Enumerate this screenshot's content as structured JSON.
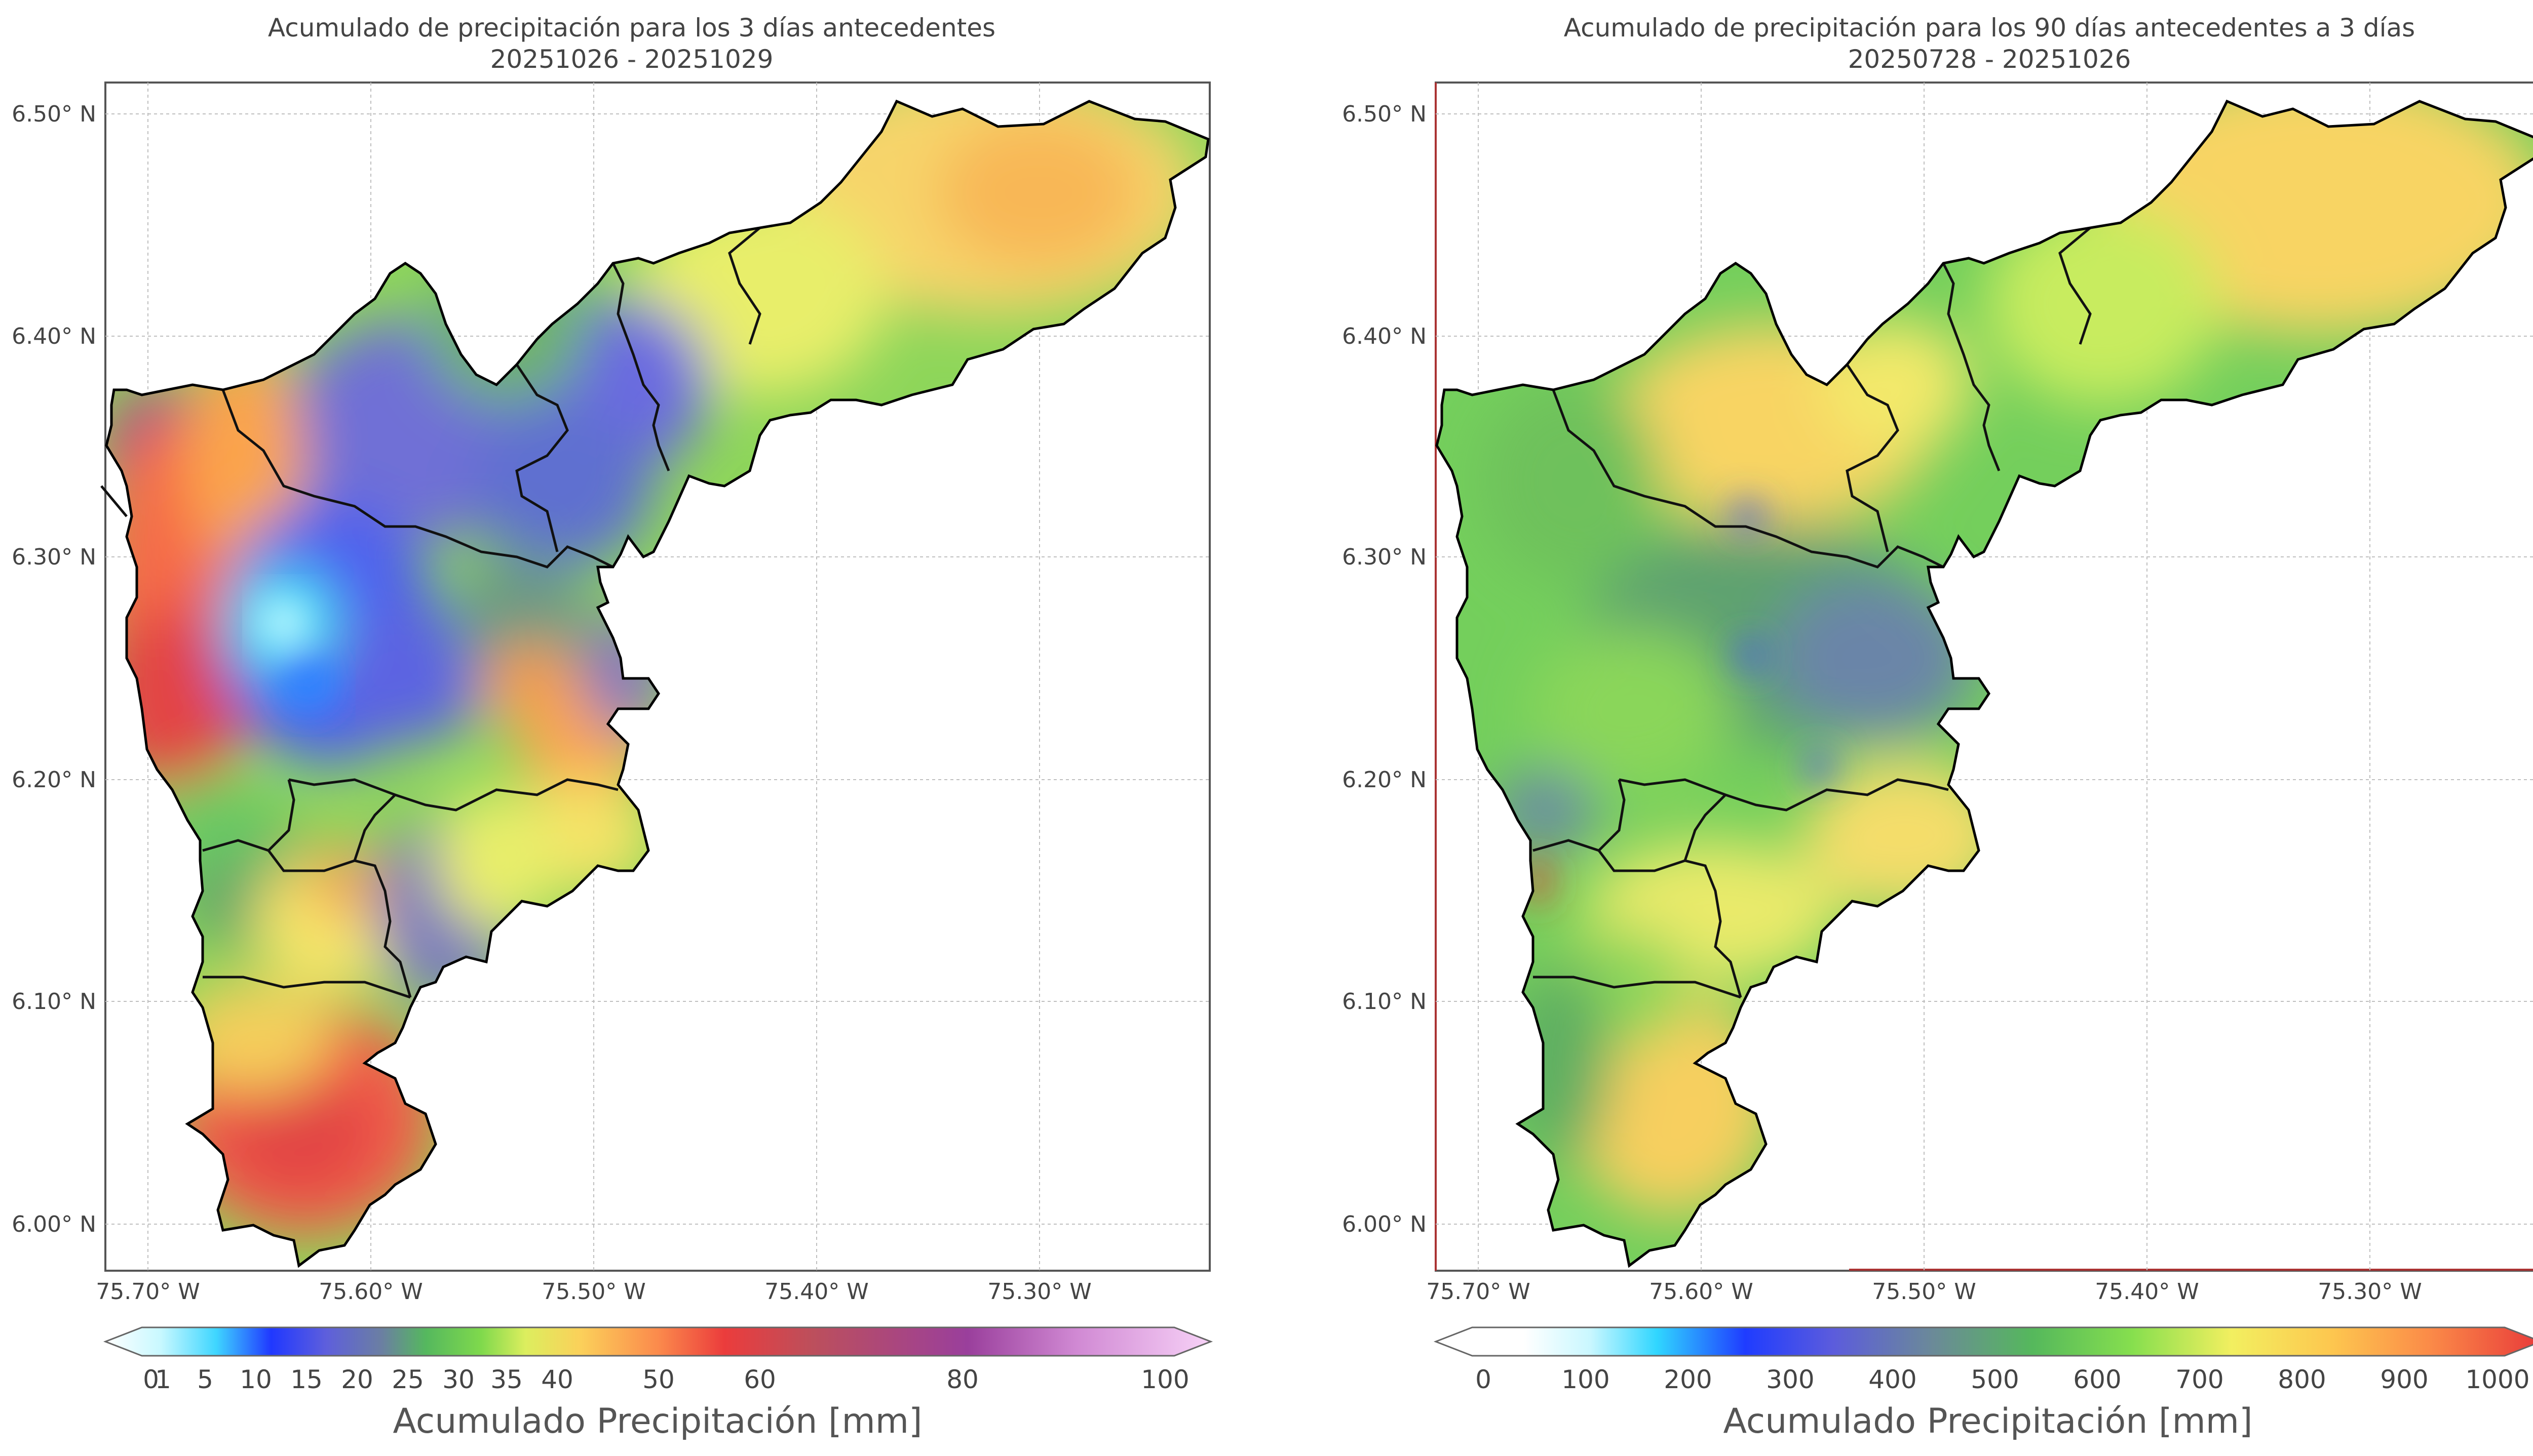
{
  "panels": [
    {
      "title_line1": "Acumulado de precipitación para los 3 días antecedentes",
      "title_line2": "20251026 - 20251029",
      "colorbar_label": "Acumulado Precipitación [mm]",
      "colorbar_ticks": [
        "0",
        "1",
        "5",
        "10",
        "15",
        "20",
        "25",
        "30",
        "35",
        "40",
        "50",
        "60",
        "80",
        "100"
      ],
      "colorbar_tick_values": [
        0,
        1,
        5,
        10,
        15,
        20,
        25,
        30,
        35,
        40,
        50,
        60,
        80,
        100
      ],
      "colorbar_colors": [
        "#ffffff",
        "#a8f4ff",
        "#2ad4ff",
        "#1f3cff",
        "#5a5adf",
        "#6b6fbf",
        "#52b96c",
        "#6fd34e",
        "#c8ec5c",
        "#f7ef6a",
        "#fdb44d",
        "#fb6b48",
        "#e93a3a",
        "#c04c5e",
        "#9a3c9a",
        "#f5c8f5"
      ]
    },
    {
      "title_line1": "Acumulado de precipitación para los 90 días antecedentes a 3 días",
      "title_line2": "20250728 - 20251026",
      "colorbar_label": "Acumulado Precipitación [mm]",
      "colorbar_ticks": [
        "0",
        "100",
        "200",
        "300",
        "400",
        "500",
        "600",
        "700",
        "800",
        "900",
        "1000"
      ],
      "colorbar_tick_values": [
        0,
        100,
        200,
        300,
        400,
        500,
        600,
        700,
        800,
        900,
        1000
      ],
      "colorbar_colors": [
        "#ffffff",
        "#dffaff",
        "#2ad4ff",
        "#1f3cff",
        "#5a5adf",
        "#6b7fa8",
        "#54b45c",
        "#7fdc4e",
        "#f2ef60",
        "#fdc04c",
        "#fb8a48",
        "#e83a3a"
      ]
    }
  ],
  "axes": {
    "lat_labels": [
      "6.50° N",
      "6.40° N",
      "6.30° N",
      "6.20° N",
      "6.10° N",
      "6.00° N"
    ],
    "lon_labels": [
      "75.70° W",
      "75.60° W",
      "75.50° W",
      "75.40° W",
      "75.30° W"
    ]
  },
  "colors": {
    "frame": "#555555",
    "grid": "#bbbbbb",
    "boundary": "#000000",
    "subbasin": "#111111"
  }
}
